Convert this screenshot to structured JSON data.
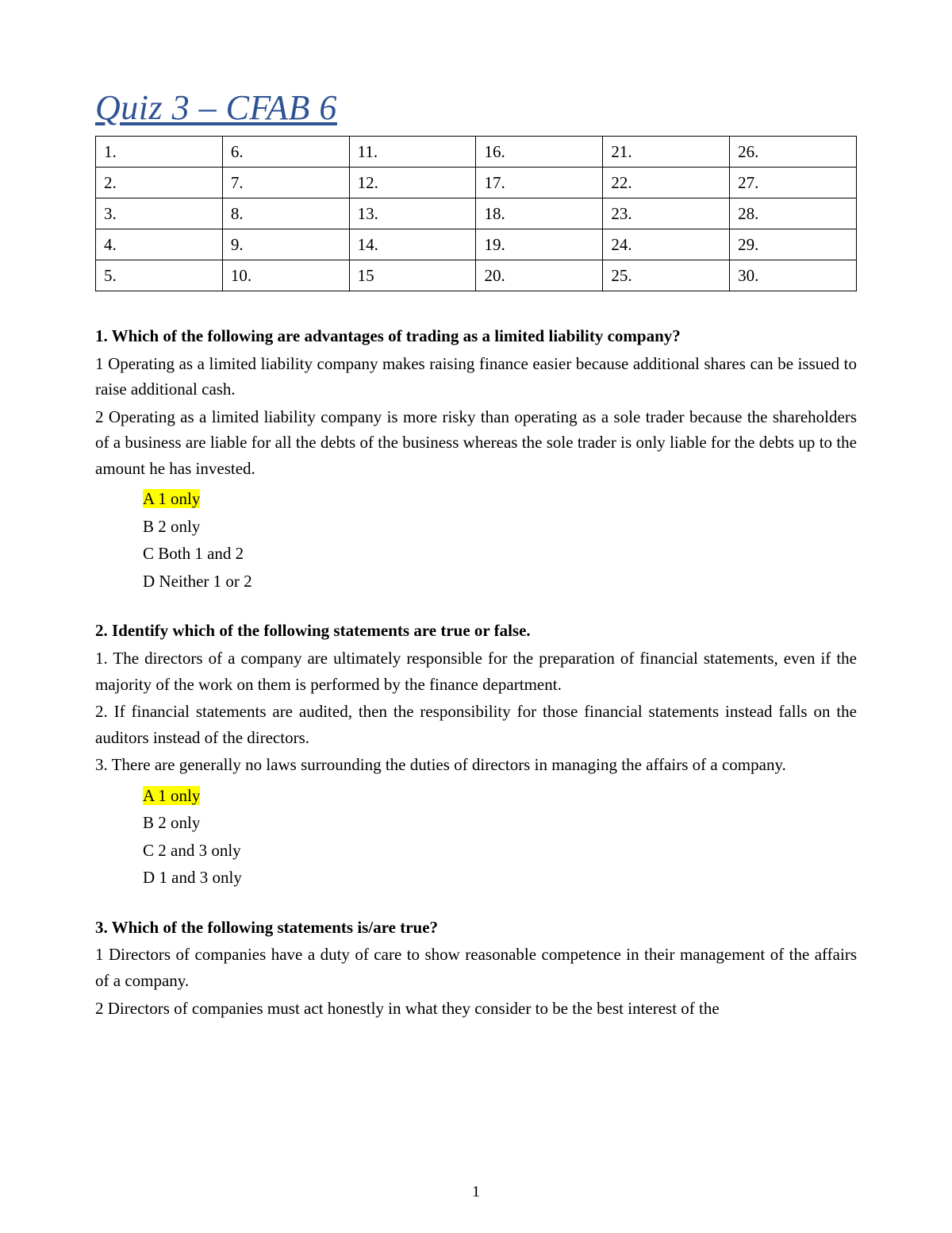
{
  "title": "Quiz 3 – CFAB 6",
  "grid": {
    "rows": [
      [
        "1.",
        "6.",
        "11.",
        "16.",
        "21.",
        "26."
      ],
      [
        "2.",
        "7.",
        "12.",
        "17.",
        "22.",
        "27."
      ],
      [
        "3.",
        "8.",
        "13.",
        "18.",
        "23.",
        "28."
      ],
      [
        "4.",
        "9.",
        "14.",
        "19.",
        "24.",
        "29."
      ],
      [
        "5.",
        "10.",
        "15",
        "20.",
        "25.",
        "30."
      ]
    ]
  },
  "q1": {
    "title": "1. Which of the following are advantages of trading as a limited liability company?",
    "s1": "1 Operating as a limited liability company makes raising finance easier because additional shares can be issued to raise additional cash.",
    "s2": "2 Operating as a limited liability company is more risky than operating as a sole trader because the shareholders of a business are liable for all the debts of the business whereas the sole trader is only liable for the debts up to the amount he has invested.",
    "optA": "A 1 only",
    "optB": "B 2 only",
    "optC": "C Both 1 and 2",
    "optD": "D Neither 1 or 2"
  },
  "q2": {
    "title": "2. Identify which of the following statements are true or false.",
    "s1": "1. The directors of a company are ultimately responsible for the preparation of financial statements, even if the majority of the work on them is performed by the finance department.",
    "s2": "2. If financial statements are audited, then the responsibility for those financial statements instead falls on the auditors instead of the directors.",
    "s3": "3. There are generally no laws surrounding the duties of directors in managing the affairs of a company.",
    "optA": "A 1 only",
    "optB": "B 2 only",
    "optC": "C 2 and 3 only",
    "optD": "D 1 and 3 only"
  },
  "q3": {
    "title": "3. Which of the following statements is/are true?",
    "s1": "1 Directors of companies have a duty of care to show reasonable competence in their management of the affairs of a company.",
    "s2": "2 Directors of companies must act honestly in what they consider to be the best interest of the"
  },
  "pageNumber": "1"
}
